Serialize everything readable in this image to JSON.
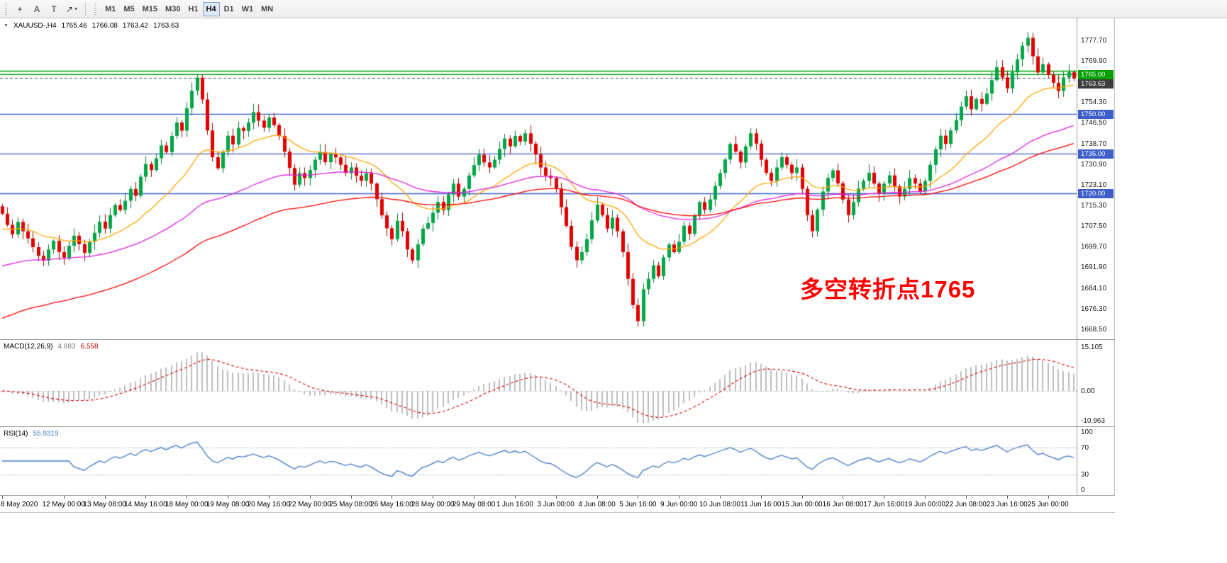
{
  "toolbar": {
    "tools": {
      "crosshair": "+",
      "label": "A",
      "text": "T",
      "shapes": "↗",
      "caret": "▾"
    },
    "timeframes": [
      "M1",
      "M5",
      "M15",
      "M30",
      "H1",
      "H4",
      "D1",
      "W1",
      "MN"
    ],
    "active_timeframe": "H4"
  },
  "chart": {
    "collapse_icon": "▼",
    "title": {
      "symbol": "XAUUSD-,H4",
      "open": "1765.46",
      "high": "1766.08",
      "low": "1763.42",
      "close": "1763.63"
    },
    "annotation": {
      "text": "多空转折点1765",
      "color": "#ff0000"
    },
    "price_ticks": [
      "1777.70",
      "1769.90",
      "1754.30",
      "1746.50",
      "1738.70",
      "1730.90",
      "1723.10",
      "1715.30",
      "1707.50",
      "1699.70",
      "1691.90",
      "1684.10",
      "1676.30",
      "1668.50"
    ],
    "badges": [
      {
        "text": "1765.00",
        "bg": "#00A000",
        "price": 1765.0
      },
      {
        "text": "1763.63",
        "bg": "#3D3D3D",
        "price": 1763.63
      },
      {
        "text": "1750.00",
        "bg": "#3E5FC9",
        "price": 1750.0
      },
      {
        "text": "1735.00",
        "bg": "#3E5FC9",
        "price": 1735.0
      },
      {
        "text": "1720.00",
        "bg": "#3E5FC9",
        "price": 1720.0
      }
    ]
  },
  "macd": {
    "name": "MACD(12,26,9)",
    "value_main": "4.883",
    "value_signal": "6.558",
    "scale_top": "15.105",
    "scale_zero": "0.00",
    "scale_bottom": "-10.963"
  },
  "rsi": {
    "name": "RSI(14)",
    "value": "55.9319",
    "scale": [
      "100",
      "70",
      "30",
      "0"
    ],
    "levels": [
      70,
      30
    ]
  },
  "chart_data": {
    "type": "candlestick",
    "symbol": "XAUUSD",
    "timeframe": "H4",
    "first_open": 1715.2,
    "closes": [
      1712.4,
      1708.2,
      1704.6,
      1709.3,
      1705.8,
      1703.1,
      1699.8,
      1696.5,
      1694.7,
      1698.9,
      1702.2,
      1697.9,
      1695.8,
      1700.3,
      1704.1,
      1700.9,
      1697.6,
      1701.8,
      1705.2,
      1709.4,
      1706.8,
      1711.9,
      1715.7,
      1713.8,
      1717.3,
      1721.8,
      1719.2,
      1726.4,
      1731.2,
      1728.9,
      1733.4,
      1738.2,
      1735.7,
      1741.8,
      1746.9,
      1743.8,
      1752.3,
      1758.9,
      1763.8,
      1755.6,
      1743.9,
      1733.8,
      1729.6,
      1735.8,
      1741.9,
      1738.6,
      1744.8,
      1743.7,
      1746.9,
      1750.8,
      1747.6,
      1744.9,
      1748.8,
      1745.9,
      1741.8,
      1735.9,
      1729.7,
      1723.4,
      1727.8,
      1725.9,
      1728.9,
      1732.8,
      1735.7,
      1731.9,
      1734.8,
      1733.7,
      1730.9,
      1727.8,
      1729.9,
      1726.8,
      1724.9,
      1727.7,
      1723.8,
      1717.9,
      1711.8,
      1706.9,
      1702.8,
      1709.7,
      1705.8,
      1698.9,
      1694.8,
      1700.9,
      1706.8,
      1708.9,
      1712.8,
      1716.9,
      1713.8,
      1719.7,
      1723.8,
      1718.9,
      1721.8,
      1726.9,
      1730.8,
      1734.7,
      1731.8,
      1729.9,
      1732.8,
      1736.9,
      1740.8,
      1737.9,
      1741.8,
      1739.7,
      1742.8,
      1738.9,
      1734.8,
      1729.9,
      1726.8,
      1725.9,
      1721.8,
      1714.9,
      1707.8,
      1699.9,
      1694.8,
      1697.9,
      1702.8,
      1709.9,
      1715.8,
      1711.9,
      1706.8,
      1710.9,
      1705.8,
      1697.9,
      1687.8,
      1677.9,
      1671.8,
      1683.9,
      1687.8,
      1692.9,
      1688.8,
      1695.9,
      1700.8,
      1697.9,
      1701.8,
      1707.9,
      1704.8,
      1711.9,
      1716.8,
      1713.9,
      1717.8,
      1722.9,
      1727.8,
      1732.9,
      1738.8,
      1735.9,
      1731.8,
      1737.9,
      1742.8,
      1738.9,
      1732.8,
      1727.9,
      1724.8,
      1729.9,
      1733.8,
      1730.9,
      1727.8,
      1729.9,
      1721.8,
      1711.9,
      1705.8,
      1713.9,
      1720.8,
      1725.9,
      1728.8,
      1723.9,
      1717.8,
      1711.9,
      1716.8,
      1721.9,
      1724.8,
      1727.9,
      1723.8,
      1719.9,
      1723.8,
      1726.9,
      1722.8,
      1718.9,
      1721.8,
      1725.9,
      1723.8,
      1720.9,
      1724.8,
      1730.9,
      1736.8,
      1741.9,
      1738.8,
      1743.9,
      1747.8,
      1752.9,
      1756.8,
      1751.9,
      1755.8,
      1753.9,
      1757.8,
      1762.9,
      1767.8,
      1763.9,
      1759.8,
      1765.9,
      1770.8,
      1775.9,
      1778.9,
      1771.9,
      1765.8,
      1768.9,
      1764.8,
      1761.9,
      1758.8,
      1763.9,
      1765.9,
      1763.63
    ],
    "x_labels": [
      [
        0,
        "8 May 2020"
      ],
      [
        12,
        "12 May 00:00"
      ],
      [
        20,
        "13 May 08:00"
      ],
      [
        28,
        "14 May 16:00"
      ],
      [
        36,
        "18 May 00:00"
      ],
      [
        44,
        "19 May 08:00"
      ],
      [
        52,
        "20 May 16:00"
      ],
      [
        60,
        "22 May 00:00"
      ],
      [
        68,
        "25 May 08:00"
      ],
      [
        76,
        "26 May 16:00"
      ],
      [
        84,
        "28 May 00:00"
      ],
      [
        92,
        "29 May 08:00"
      ],
      [
        100,
        "1 Jun 16:00"
      ],
      [
        108,
        "3 Jun 00:00"
      ],
      [
        116,
        "4 Jun 08:00"
      ],
      [
        124,
        "5 Jun 16:00"
      ],
      [
        132,
        "9 Jun 00:00"
      ],
      [
        140,
        "10 Jun 08:00"
      ],
      [
        148,
        "11 Jun 16:00"
      ],
      [
        156,
        "15 Jun 00:00"
      ],
      [
        164,
        "16 Jun 08:00"
      ],
      [
        172,
        "17 Jun 16:00"
      ],
      [
        180,
        "19 Jun 00:00"
      ],
      [
        188,
        "22 Jun 08:00"
      ],
      [
        196,
        "23 Jun 16:00"
      ],
      [
        204,
        "25 Jun 00:00"
      ]
    ],
    "levels": {
      "green": [
        1766.3,
        1765.0
      ],
      "blue": [
        1750.0,
        1735.0,
        1720.0
      ],
      "bid": 1763.63
    },
    "indicators": {
      "macd": "12,26,9",
      "rsi": "14"
    },
    "colors": {
      "up": "#00A646",
      "up_dark": "#007A33",
      "down": "#E00000",
      "down_dark": "#A40000",
      "ma_fast": "#FFA500",
      "ma_mid": "#DD22DD",
      "ma_slow": "#FF0000",
      "macd_hist": "#BDBDBD",
      "macd_signal": "#D40000",
      "rsi": "#3F7AC5",
      "level_blue": "#3E5FC9",
      "level_green": "#00A000",
      "bid": "#555555"
    }
  }
}
